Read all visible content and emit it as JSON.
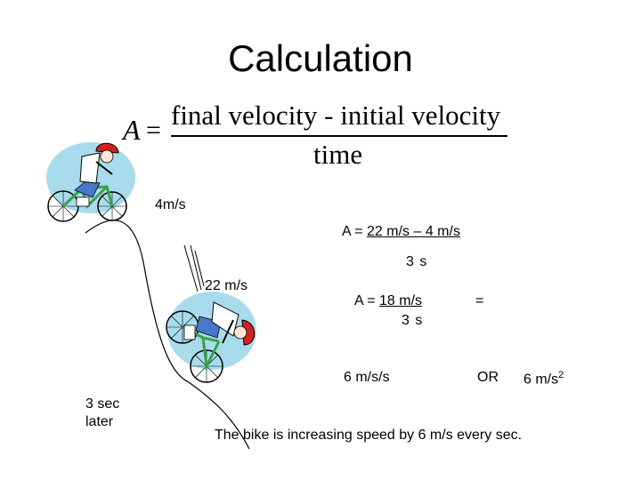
{
  "title": "Calculation",
  "formula": {
    "lhs": "A",
    "equals": "=",
    "numerator": "final velocity - initial velocity",
    "denominator": "time"
  },
  "labels": {
    "initial_speed": "4m/s",
    "final_speed": "22 m/s",
    "later": "3 sec later"
  },
  "work": {
    "line1_prefix": "A = ",
    "line1_num": "22 m/s – 4 m/s",
    "line1_den": "3 s",
    "line2_prefix": "A = ",
    "line2_num": "18 m/s",
    "line2_den": "3 s",
    "line2_equals": "=",
    "result1": "6 m/s/s",
    "or": "OR",
    "result2_base": "6 m/s",
    "result2_exp": "2"
  },
  "conclusion": "The bike is increasing speed by 6 m/s every sec.",
  "colors": {
    "circle_fill": "#a8dcec",
    "helmet": "#d42020",
    "frame": "#3aa04a",
    "shirt": "#ffffff",
    "jeans": "#4a78c8"
  }
}
